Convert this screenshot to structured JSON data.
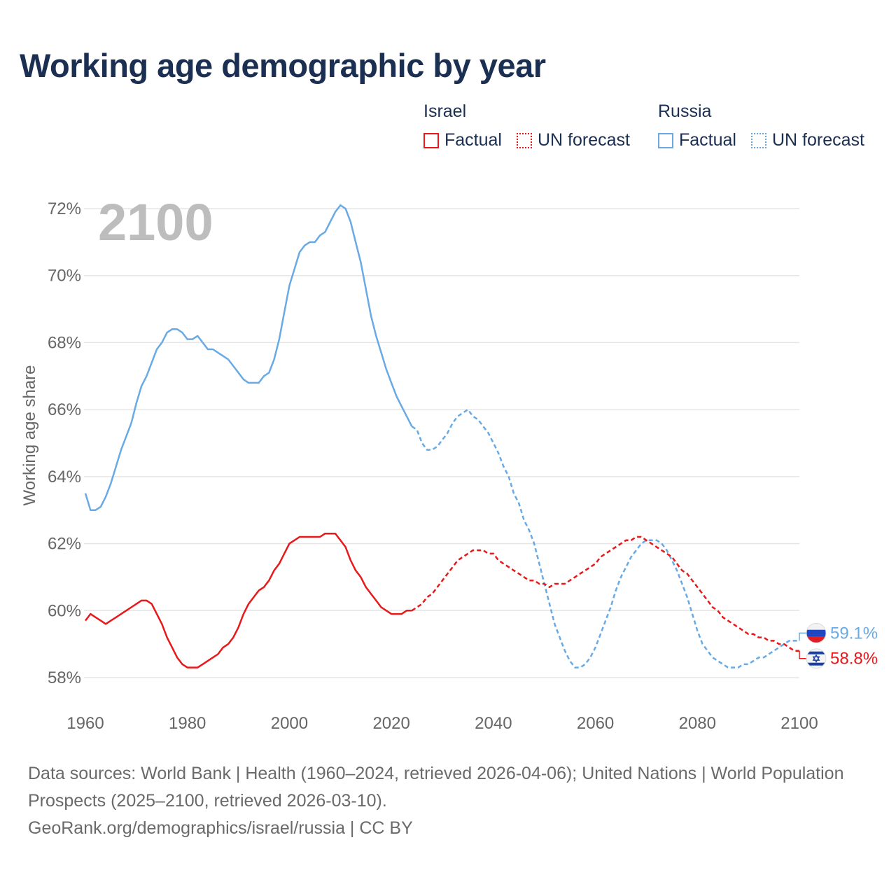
{
  "title": "Working age demographic by year",
  "legend": {
    "israel": {
      "name": "Israel",
      "factual": "Factual",
      "forecast": "UN forecast",
      "color": "#e8191b"
    },
    "russia": {
      "name": "Russia",
      "factual": "Factual",
      "forecast": "UN forecast",
      "color": "#6aaae4"
    }
  },
  "sources": {
    "line1": "Data sources: World Bank | Health (1960–2024, retrieved 2026-04-06); United Nations | World Population Prospects (2025–2100, retrieved 2026-03-10).",
    "line2": "GeoRank.org/demographics/israel/russia | CC BY"
  },
  "chart_data": {
    "type": "line",
    "title": "Working age demographic by year",
    "ylabel": "Working age share",
    "xlabel": "",
    "year_display": "2100",
    "xlim": [
      1960,
      2100
    ],
    "ylim": [
      57.2,
      72.5
    ],
    "xticks": [
      1960,
      1980,
      2000,
      2020,
      2040,
      2060,
      2080,
      2100
    ],
    "yticks": [
      58,
      60,
      62,
      64,
      66,
      68,
      70,
      72
    ],
    "ytick_labels": [
      "58%",
      "60%",
      "62%",
      "64%",
      "66%",
      "68%",
      "70%",
      "72%"
    ],
    "grid": true,
    "factual_until": 2024,
    "series": [
      {
        "name": "Russia",
        "color": "#6aaae4",
        "end_label": "59.1%",
        "points": [
          [
            1960,
            63.5
          ],
          [
            1961,
            63.0
          ],
          [
            1962,
            63.0
          ],
          [
            1963,
            63.1
          ],
          [
            1964,
            63.4
          ],
          [
            1965,
            63.8
          ],
          [
            1966,
            64.3
          ],
          [
            1967,
            64.8
          ],
          [
            1968,
            65.2
          ],
          [
            1969,
            65.6
          ],
          [
            1970,
            66.2
          ],
          [
            1971,
            66.7
          ],
          [
            1972,
            67.0
          ],
          [
            1973,
            67.4
          ],
          [
            1974,
            67.8
          ],
          [
            1975,
            68.0
          ],
          [
            1976,
            68.3
          ],
          [
            1977,
            68.4
          ],
          [
            1978,
            68.4
          ],
          [
            1979,
            68.3
          ],
          [
            1980,
            68.1
          ],
          [
            1981,
            68.1
          ],
          [
            1982,
            68.2
          ],
          [
            1983,
            68.0
          ],
          [
            1984,
            67.8
          ],
          [
            1985,
            67.8
          ],
          [
            1986,
            67.7
          ],
          [
            1987,
            67.6
          ],
          [
            1988,
            67.5
          ],
          [
            1989,
            67.3
          ],
          [
            1990,
            67.1
          ],
          [
            1991,
            66.9
          ],
          [
            1992,
            66.8
          ],
          [
            1993,
            66.8
          ],
          [
            1994,
            66.8
          ],
          [
            1995,
            67.0
          ],
          [
            1996,
            67.1
          ],
          [
            1997,
            67.5
          ],
          [
            1998,
            68.1
          ],
          [
            1999,
            68.9
          ],
          [
            2000,
            69.7
          ],
          [
            2001,
            70.2
          ],
          [
            2002,
            70.7
          ],
          [
            2003,
            70.9
          ],
          [
            2004,
            71.0
          ],
          [
            2005,
            71.0
          ],
          [
            2006,
            71.2
          ],
          [
            2007,
            71.3
          ],
          [
            2008,
            71.6
          ],
          [
            2009,
            71.9
          ],
          [
            2010,
            72.1
          ],
          [
            2011,
            72.0
          ],
          [
            2012,
            71.6
          ],
          [
            2013,
            71.0
          ],
          [
            2014,
            70.4
          ],
          [
            2015,
            69.6
          ],
          [
            2016,
            68.8
          ],
          [
            2017,
            68.2
          ],
          [
            2018,
            67.7
          ],
          [
            2019,
            67.2
          ],
          [
            2020,
            66.8
          ],
          [
            2021,
            66.4
          ],
          [
            2022,
            66.1
          ],
          [
            2023,
            65.8
          ],
          [
            2024,
            65.5
          ],
          [
            2025,
            65.4
          ],
          [
            2026,
            65.0
          ],
          [
            2027,
            64.8
          ],
          [
            2028,
            64.8
          ],
          [
            2029,
            64.9
          ],
          [
            2030,
            65.1
          ],
          [
            2031,
            65.3
          ],
          [
            2032,
            65.6
          ],
          [
            2033,
            65.8
          ],
          [
            2034,
            65.9
          ],
          [
            2035,
            66.0
          ],
          [
            2036,
            65.8
          ],
          [
            2037,
            65.7
          ],
          [
            2038,
            65.5
          ],
          [
            2039,
            65.3
          ],
          [
            2040,
            65.0
          ],
          [
            2041,
            64.7
          ],
          [
            2042,
            64.3
          ],
          [
            2043,
            64.0
          ],
          [
            2044,
            63.5
          ],
          [
            2045,
            63.2
          ],
          [
            2046,
            62.7
          ],
          [
            2047,
            62.4
          ],
          [
            2048,
            62.0
          ],
          [
            2049,
            61.4
          ],
          [
            2050,
            60.8
          ],
          [
            2051,
            60.2
          ],
          [
            2052,
            59.6
          ],
          [
            2053,
            59.2
          ],
          [
            2054,
            58.8
          ],
          [
            2055,
            58.5
          ],
          [
            2056,
            58.3
          ],
          [
            2057,
            58.3
          ],
          [
            2058,
            58.4
          ],
          [
            2059,
            58.6
          ],
          [
            2060,
            58.9
          ],
          [
            2061,
            59.3
          ],
          [
            2062,
            59.7
          ],
          [
            2063,
            60.1
          ],
          [
            2064,
            60.6
          ],
          [
            2065,
            61.0
          ],
          [
            2066,
            61.3
          ],
          [
            2067,
            61.6
          ],
          [
            2068,
            61.8
          ],
          [
            2069,
            62.0
          ],
          [
            2070,
            62.1
          ],
          [
            2071,
            62.1
          ],
          [
            2072,
            62.1
          ],
          [
            2073,
            62.0
          ],
          [
            2074,
            61.8
          ],
          [
            2075,
            61.5
          ],
          [
            2076,
            61.2
          ],
          [
            2077,
            60.8
          ],
          [
            2078,
            60.4
          ],
          [
            2079,
            59.9
          ],
          [
            2080,
            59.4
          ],
          [
            2081,
            59.0
          ],
          [
            2082,
            58.8
          ],
          [
            2083,
            58.6
          ],
          [
            2084,
            58.5
          ],
          [
            2085,
            58.4
          ],
          [
            2086,
            58.3
          ],
          [
            2087,
            58.3
          ],
          [
            2088,
            58.3
          ],
          [
            2089,
            58.4
          ],
          [
            2090,
            58.4
          ],
          [
            2091,
            58.5
          ],
          [
            2092,
            58.6
          ],
          [
            2093,
            58.6
          ],
          [
            2094,
            58.7
          ],
          [
            2095,
            58.8
          ],
          [
            2096,
            58.9
          ],
          [
            2097,
            59.0
          ],
          [
            2098,
            59.1
          ],
          [
            2099,
            59.1
          ],
          [
            2100,
            59.1
          ]
        ]
      },
      {
        "name": "Israel",
        "color": "#e8191b",
        "end_label": "58.8%",
        "points": [
          [
            1960,
            59.7
          ],
          [
            1961,
            59.9
          ],
          [
            1962,
            59.8
          ],
          [
            1963,
            59.7
          ],
          [
            1964,
            59.6
          ],
          [
            1965,
            59.7
          ],
          [
            1966,
            59.8
          ],
          [
            1967,
            59.9
          ],
          [
            1968,
            60.0
          ],
          [
            1969,
            60.1
          ],
          [
            1970,
            60.2
          ],
          [
            1971,
            60.3
          ],
          [
            1972,
            60.3
          ],
          [
            1973,
            60.2
          ],
          [
            1974,
            59.9
          ],
          [
            1975,
            59.6
          ],
          [
            1976,
            59.2
          ],
          [
            1977,
            58.9
          ],
          [
            1978,
            58.6
          ],
          [
            1979,
            58.4
          ],
          [
            1980,
            58.3
          ],
          [
            1981,
            58.3
          ],
          [
            1982,
            58.3
          ],
          [
            1983,
            58.4
          ],
          [
            1984,
            58.5
          ],
          [
            1985,
            58.6
          ],
          [
            1986,
            58.7
          ],
          [
            1987,
            58.9
          ],
          [
            1988,
            59.0
          ],
          [
            1989,
            59.2
          ],
          [
            1990,
            59.5
          ],
          [
            1991,
            59.9
          ],
          [
            1992,
            60.2
          ],
          [
            1993,
            60.4
          ],
          [
            1994,
            60.6
          ],
          [
            1995,
            60.7
          ],
          [
            1996,
            60.9
          ],
          [
            1997,
            61.2
          ],
          [
            1998,
            61.4
          ],
          [
            1999,
            61.7
          ],
          [
            2000,
            62.0
          ],
          [
            2001,
            62.1
          ],
          [
            2002,
            62.2
          ],
          [
            2003,
            62.2
          ],
          [
            2004,
            62.2
          ],
          [
            2005,
            62.2
          ],
          [
            2006,
            62.2
          ],
          [
            2007,
            62.3
          ],
          [
            2008,
            62.3
          ],
          [
            2009,
            62.3
          ],
          [
            2010,
            62.1
          ],
          [
            2011,
            61.9
          ],
          [
            2012,
            61.5
          ],
          [
            2013,
            61.2
          ],
          [
            2014,
            61.0
          ],
          [
            2015,
            60.7
          ],
          [
            2016,
            60.5
          ],
          [
            2017,
            60.3
          ],
          [
            2018,
            60.1
          ],
          [
            2019,
            60.0
          ],
          [
            2020,
            59.9
          ],
          [
            2021,
            59.9
          ],
          [
            2022,
            59.9
          ],
          [
            2023,
            60.0
          ],
          [
            2024,
            60.0
          ],
          [
            2025,
            60.1
          ],
          [
            2026,
            60.2
          ],
          [
            2027,
            60.4
          ],
          [
            2028,
            60.5
          ],
          [
            2029,
            60.7
          ],
          [
            2030,
            60.9
          ],
          [
            2031,
            61.1
          ],
          [
            2032,
            61.3
          ],
          [
            2033,
            61.5
          ],
          [
            2034,
            61.6
          ],
          [
            2035,
            61.7
          ],
          [
            2036,
            61.8
          ],
          [
            2037,
            61.8
          ],
          [
            2038,
            61.8
          ],
          [
            2039,
            61.7
          ],
          [
            2040,
            61.7
          ],
          [
            2041,
            61.5
          ],
          [
            2042,
            61.4
          ],
          [
            2043,
            61.3
          ],
          [
            2044,
            61.2
          ],
          [
            2045,
            61.1
          ],
          [
            2046,
            61.0
          ],
          [
            2047,
            60.9
          ],
          [
            2048,
            60.9
          ],
          [
            2049,
            60.8
          ],
          [
            2050,
            60.8
          ],
          [
            2051,
            60.7
          ],
          [
            2052,
            60.8
          ],
          [
            2053,
            60.8
          ],
          [
            2054,
            60.8
          ],
          [
            2055,
            60.9
          ],
          [
            2056,
            61.0
          ],
          [
            2057,
            61.1
          ],
          [
            2058,
            61.2
          ],
          [
            2059,
            61.3
          ],
          [
            2060,
            61.4
          ],
          [
            2061,
            61.6
          ],
          [
            2062,
            61.7
          ],
          [
            2063,
            61.8
          ],
          [
            2064,
            61.9
          ],
          [
            2065,
            62.0
          ],
          [
            2066,
            62.1
          ],
          [
            2067,
            62.1
          ],
          [
            2068,
            62.2
          ],
          [
            2069,
            62.2
          ],
          [
            2070,
            62.1
          ],
          [
            2071,
            62.0
          ],
          [
            2072,
            61.9
          ],
          [
            2073,
            61.8
          ],
          [
            2074,
            61.7
          ],
          [
            2075,
            61.6
          ],
          [
            2076,
            61.4
          ],
          [
            2077,
            61.2
          ],
          [
            2078,
            61.1
          ],
          [
            2079,
            60.9
          ],
          [
            2080,
            60.7
          ],
          [
            2081,
            60.5
          ],
          [
            2082,
            60.3
          ],
          [
            2083,
            60.1
          ],
          [
            2084,
            60.0
          ],
          [
            2085,
            59.8
          ],
          [
            2086,
            59.7
          ],
          [
            2087,
            59.6
          ],
          [
            2088,
            59.5
          ],
          [
            2089,
            59.4
          ],
          [
            2090,
            59.3
          ],
          [
            2091,
            59.3
          ],
          [
            2092,
            59.2
          ],
          [
            2093,
            59.2
          ],
          [
            2094,
            59.1
          ],
          [
            2095,
            59.1
          ],
          [
            2096,
            59.0
          ],
          [
            2097,
            59.0
          ],
          [
            2098,
            58.9
          ],
          [
            2099,
            58.8
          ],
          [
            2100,
            58.8
          ]
        ]
      }
    ]
  }
}
